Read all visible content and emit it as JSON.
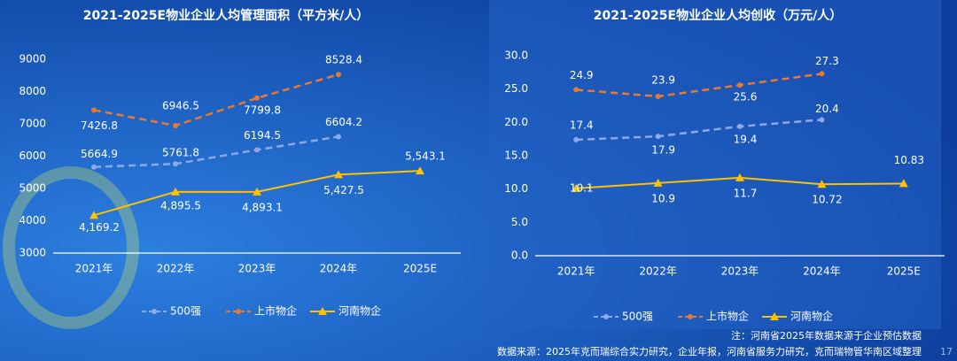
{
  "chart_data": [
    {
      "type": "line",
      "title": "2021-2025E物业企业人均管理面积（平方米/人）",
      "categories": [
        "2021年",
        "2022年",
        "2023年",
        "2024年",
        "2025E"
      ],
      "ylim": [
        3000,
        9000
      ],
      "yticks": [
        3000,
        4000,
        5000,
        6000,
        7000,
        8000,
        9000
      ],
      "series": [
        {
          "name": "500强",
          "color": "#8fa8e6",
          "dash": true,
          "values": [
            5664.9,
            5761.8,
            6194.5,
            6604.2,
            null
          ]
        },
        {
          "name": "上市物企",
          "color": "#e8792e",
          "dash": true,
          "values": [
            7426.8,
            6946.5,
            7799.8,
            8528.4,
            null
          ]
        },
        {
          "name": "河南物企",
          "color": "#ffc000",
          "dash": false,
          "values": [
            4169.2,
            4895.5,
            4893.1,
            5427.5,
            5543.1
          ],
          "value_labels": [
            "4,169.2",
            "4,895.5",
            "4,893.1",
            "5,427.5",
            "5,543.1"
          ]
        }
      ]
    },
    {
      "type": "line",
      "title": "2021-2025E物业企业人均创收（万元/人）",
      "categories": [
        "2021年",
        "2022年",
        "2023年",
        "2024年",
        "2025E"
      ],
      "ylim": [
        0,
        30
      ],
      "yticks": [
        {
          "value": 0,
          "label": "0.0"
        },
        {
          "value": 5,
          "label": "5.0"
        },
        {
          "value": 10,
          "label": "10.0"
        },
        {
          "value": 15,
          "label": "15.0"
        },
        {
          "value": 20,
          "label": "20.0"
        },
        {
          "value": 25,
          "label": "25.0"
        },
        {
          "value": 30,
          "label": "30.0"
        }
      ],
      "series": [
        {
          "name": "500强",
          "color": "#8fa8e6",
          "dash": true,
          "values": [
            17.4,
            17.9,
            19.4,
            20.4,
            null
          ]
        },
        {
          "name": "上市物企",
          "color": "#e8792e",
          "dash": true,
          "values": [
            24.9,
            23.9,
            25.6,
            27.3,
            null
          ]
        },
        {
          "name": "河南物企",
          "color": "#ffc000",
          "dash": false,
          "values": [
            10.1,
            10.9,
            11.7,
            10.72,
            10.83
          ]
        }
      ]
    }
  ],
  "footer": {
    "note": "注：河南省2025年数据来源于企业预估数据",
    "source": "数据来源：2025年克而瑞综合实力研究，企业年报，河南省服务力研究，克而瑞物管华南区域整理",
    "page": "17"
  }
}
